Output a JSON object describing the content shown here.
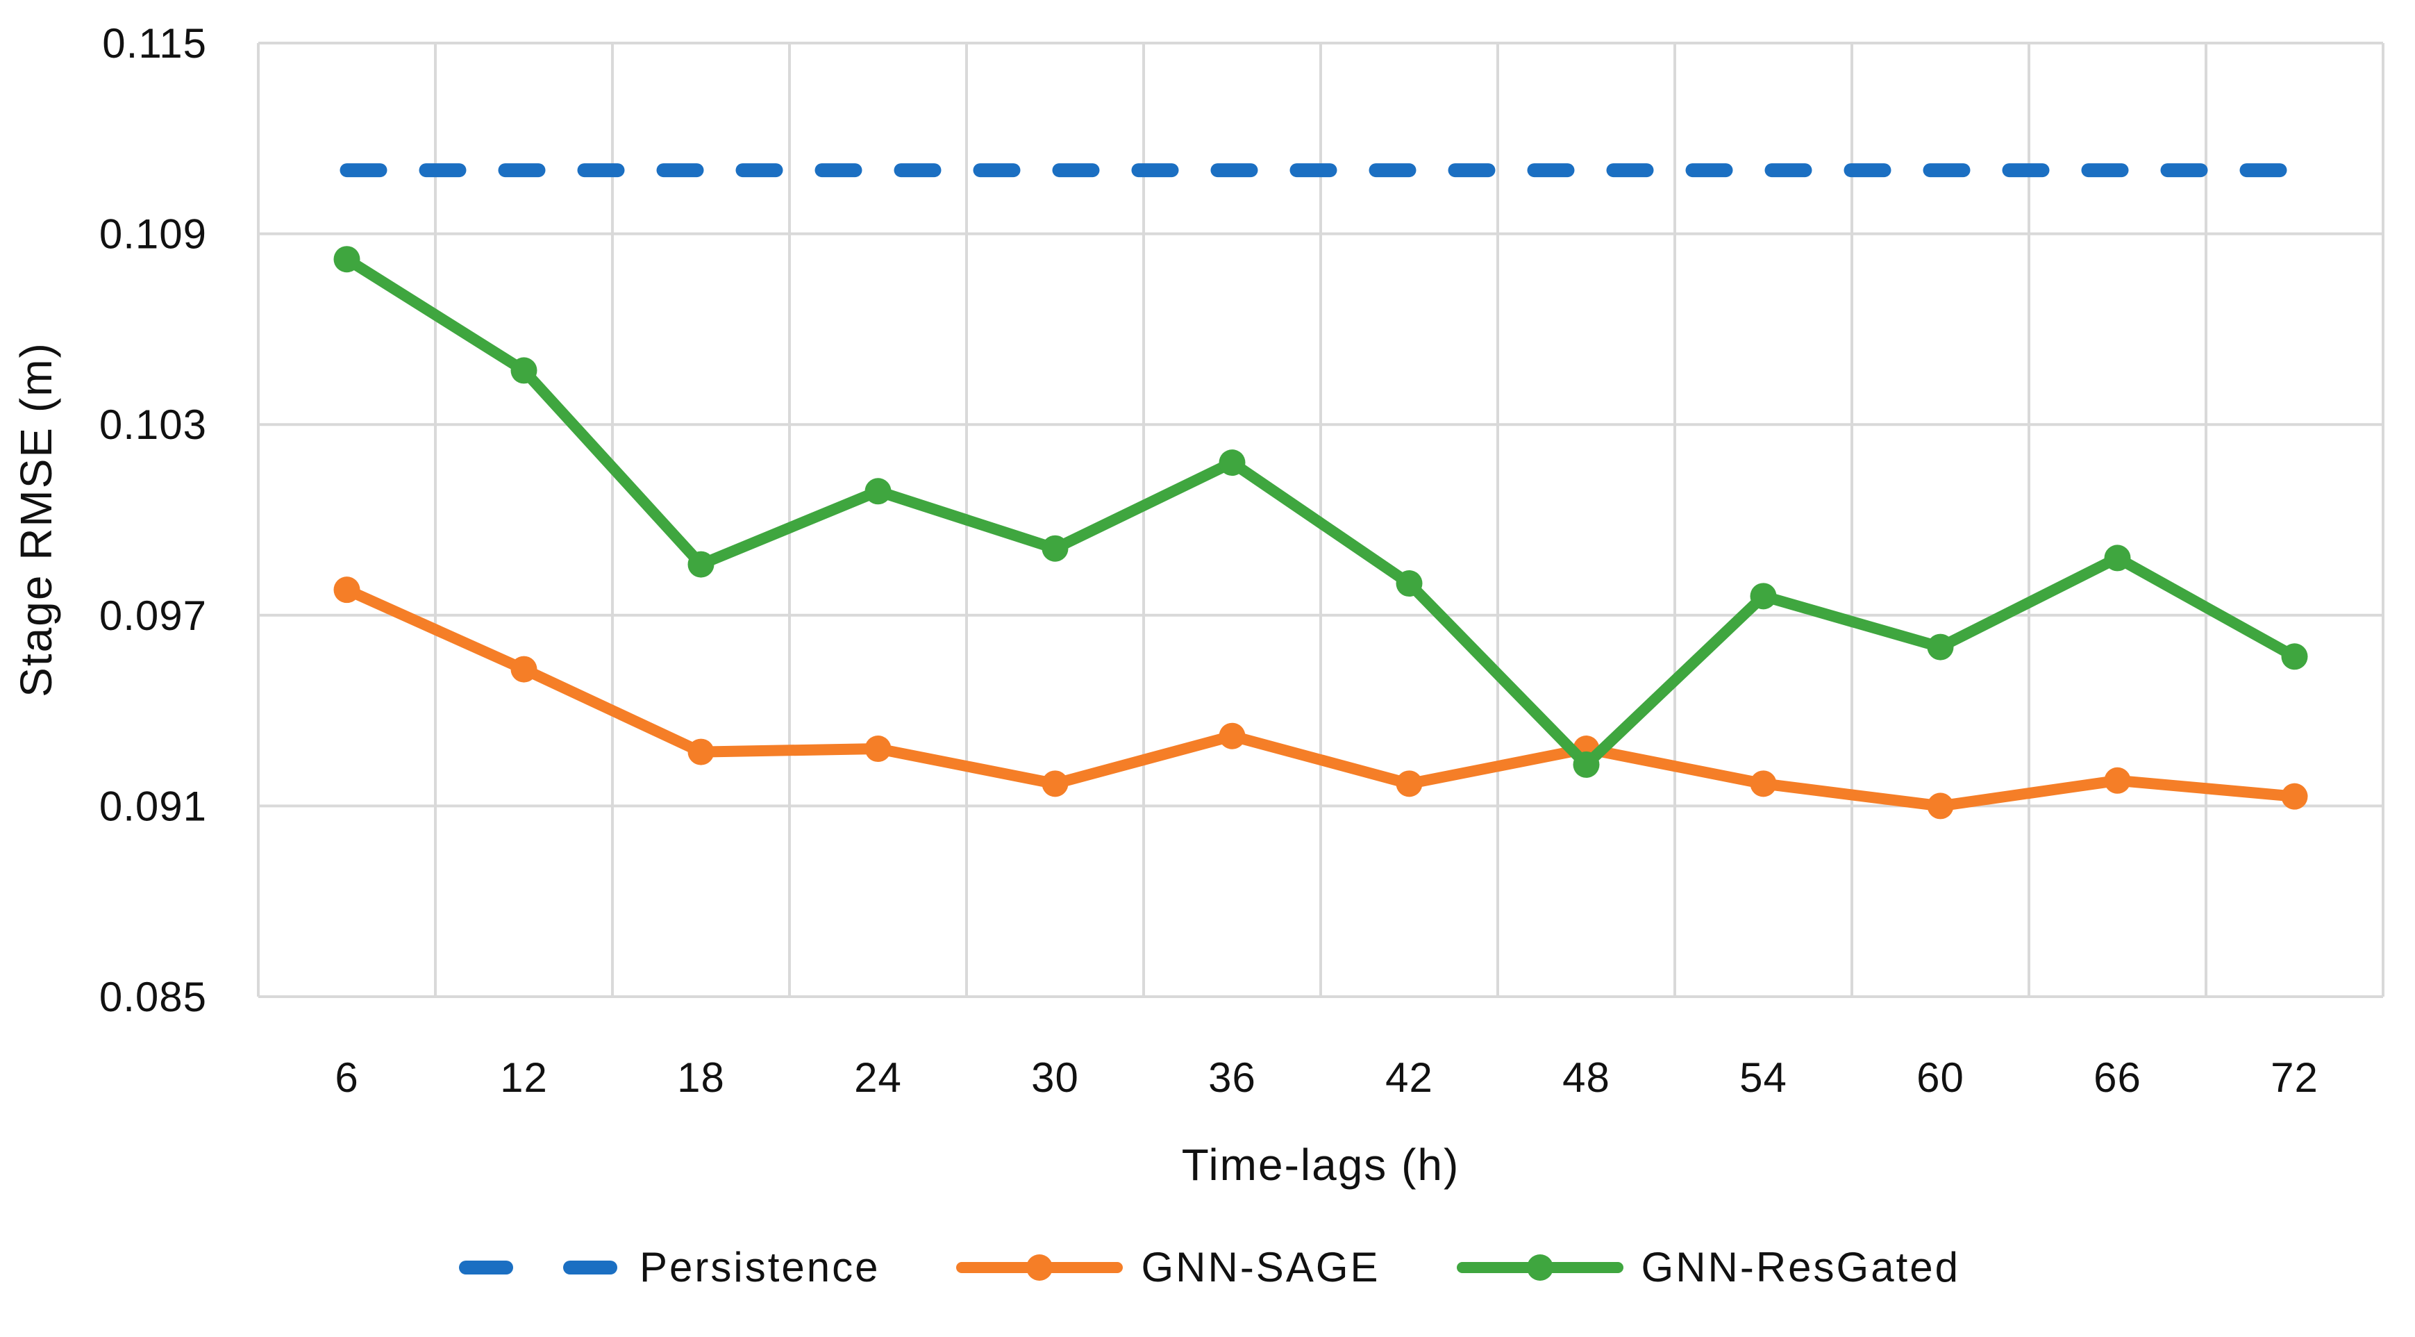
{
  "page": {
    "background": "#ffffff"
  },
  "chart_data": {
    "type": "line",
    "title": "",
    "xlabel": "Time-lags (h)",
    "ylabel": "Stage RMSE (m)",
    "x": [
      6,
      12,
      18,
      24,
      30,
      36,
      42,
      48,
      54,
      60,
      66,
      72
    ],
    "ylim": [
      0.085,
      0.115
    ],
    "yticks": [
      "0.085",
      "0.091",
      "0.097",
      "0.103",
      "0.109",
      "0.115"
    ],
    "ytick_values": [
      0.085,
      0.091,
      0.097,
      0.103,
      0.109,
      0.115
    ],
    "grid": true,
    "grid_color": "#d9d9d9",
    "text_color": "#111111",
    "legend_position": "bottom",
    "series": [
      {
        "name": "Persistence",
        "style": "dashed",
        "color": "#1b6fc2",
        "values": [
          0.111,
          0.111,
          0.111,
          0.111,
          0.111,
          0.111,
          0.111,
          0.111,
          0.111,
          0.111,
          0.111,
          0.111
        ]
      },
      {
        "name": "GNN-SAGE",
        "style": "line-marker",
        "color": "#f57e27",
        "values": [
          0.0978,
          0.0953,
          0.0927,
          0.0928,
          0.0917,
          0.0932,
          0.0917,
          0.0928,
          0.0917,
          0.091,
          0.0918,
          0.0913
        ]
      },
      {
        "name": "GNN-ResGated",
        "style": "line-marker",
        "color": "#3fa63f",
        "values": [
          0.1082,
          0.1047,
          0.0986,
          0.1009,
          0.0991,
          0.1018,
          0.098,
          0.0923,
          0.0976,
          0.096,
          0.0988,
          0.0957
        ]
      }
    ]
  }
}
